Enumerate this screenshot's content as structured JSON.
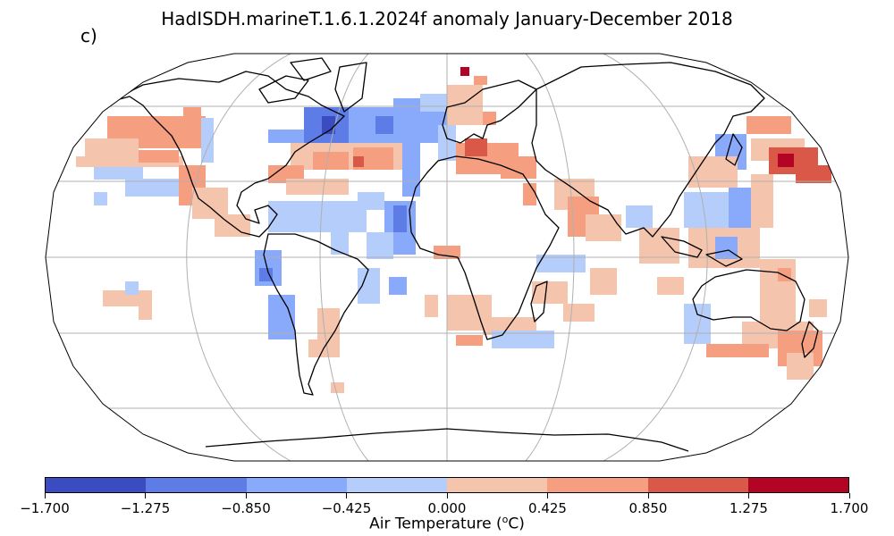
{
  "title": "HadISDH.marineT.1.6.1.2024f anomaly January-December 2018",
  "panel_label": "c)",
  "colorbar": {
    "ticks": [
      "−1.700",
      "−1.275",
      "−0.850",
      "−0.425",
      "0.000",
      "0.425",
      "0.850",
      "1.275",
      "1.700"
    ],
    "label_prefix": "Air Temperature (",
    "label_sup": "o",
    "label_suffix": "C)",
    "colors": [
      "#3b4cc0",
      "#5d7ce6",
      "#89a9fa",
      "#b5cdfa",
      "#f5c4ac",
      "#f59f80",
      "#d95847",
      "#b40426"
    ]
  },
  "map": {
    "projection": "robinson",
    "graticule": true,
    "colors": {
      "c_m3": "#3b4cc0",
      "c_m2": "#5d7ce6",
      "c_m1": "#89a9fa",
      "c_m0": "#b5cdfa",
      "c_p0": "#f5c4ac",
      "c_p1": "#f59f80",
      "c_p2": "#d95847",
      "c_p3": "#b40426"
    }
  }
}
